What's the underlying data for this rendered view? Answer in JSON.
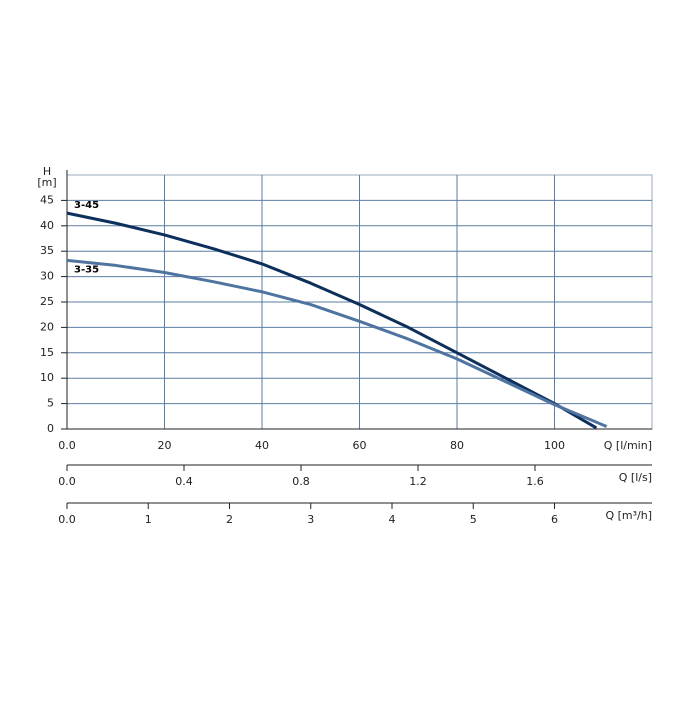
{
  "chart_data": {
    "type": "line",
    "ylabel": "H",
    "yunit": "[m]",
    "xlabel": "Q [l/min]",
    "xlim": [
      0,
      120
    ],
    "ylim": [
      0,
      50
    ],
    "xticks": [
      {
        "value": 0,
        "label": "0.0"
      },
      20,
      40,
      60,
      80,
      100
    ],
    "yticks": [
      0,
      5,
      10,
      15,
      20,
      25,
      30,
      35,
      40,
      45
    ],
    "grid": true,
    "series": [
      {
        "name": "3-45",
        "color": "#0d2f5c",
        "x": [
          0,
          10,
          20,
          30,
          40,
          50,
          60,
          70,
          80,
          90,
          100,
          108.6
        ],
        "values": [
          42.5,
          40.5,
          38.2,
          35.5,
          32.5,
          28.7,
          24.5,
          20,
          15,
          10,
          5,
          0.2
        ]
      },
      {
        "name": "3-35",
        "color": "#4f74a0",
        "x": [
          0,
          10,
          20,
          30,
          40,
          50,
          60,
          70,
          80,
          90,
          100,
          110.7
        ],
        "values": [
          33.2,
          32.2,
          30.8,
          29,
          27,
          24.5,
          21.2,
          17.7,
          13.8,
          9.3,
          4.8,
          0.5
        ]
      }
    ],
    "secondary_axes": [
      {
        "label": "Q [l/s]",
        "xlim": [
          0,
          2
        ],
        "ticks": [
          {
            "value": 0,
            "label": "0.0"
          },
          0.4,
          0.8,
          1.2,
          1.6
        ]
      },
      {
        "label": "Q [m³/h]",
        "xlim": [
          0,
          7.2
        ],
        "ticks": [
          {
            "value": 0,
            "label": "0.0"
          },
          1,
          2,
          3,
          4,
          5,
          6
        ]
      }
    ]
  }
}
